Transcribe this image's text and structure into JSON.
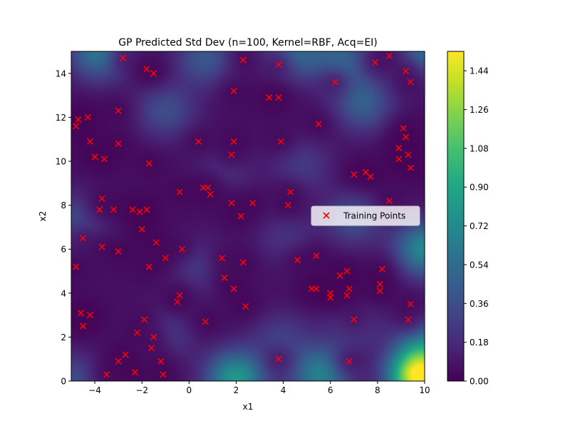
{
  "chart_data": {
    "type": "heatmap",
    "title": "GP Predicted Std Dev (n=100, Kernel=RBF, Acq=EI)",
    "xlabel": "x1",
    "ylabel": "x2",
    "xlim": [
      -5,
      10
    ],
    "ylim": [
      0,
      15
    ],
    "xticks": [
      -4,
      -2,
      0,
      2,
      4,
      6,
      8,
      10
    ],
    "yticks": [
      0,
      2,
      4,
      6,
      8,
      10,
      12,
      14
    ],
    "colormap": "viridis",
    "colorbar": {
      "range": [
        0.0,
        1.53
      ],
      "ticks": [
        "0.00",
        "0.18",
        "0.36",
        "0.54",
        "0.72",
        "0.90",
        "1.08",
        "1.26",
        "1.44"
      ]
    },
    "surface_features": [
      {
        "x": -3.8,
        "y": 15,
        "level": 0.55
      },
      {
        "x": 0.7,
        "y": 14.7,
        "level": 0.35
      },
      {
        "x": 4.5,
        "y": 15,
        "level": 0.45
      },
      {
        "x": 6.6,
        "y": 14.6,
        "level": 0.4
      },
      {
        "x": 10,
        "y": 15,
        "level": 0.5
      },
      {
        "x": -1,
        "y": 12.3,
        "level": 0.3
      },
      {
        "x": 7.4,
        "y": 12.6,
        "level": 0.38
      },
      {
        "x": -4.6,
        "y": 7.3,
        "level": 0.3
      },
      {
        "x": 1.5,
        "y": 9.5,
        "level": 0.15
      },
      {
        "x": 4.8,
        "y": 9.8,
        "level": 0.2
      },
      {
        "x": 7,
        "y": 7.4,
        "level": 0.3
      },
      {
        "x": 10,
        "y": 6,
        "level": 0.65
      },
      {
        "x": 10,
        "y": 1.8,
        "level": 0.4
      },
      {
        "x": 0.4,
        "y": 5.2,
        "level": 0.2
      },
      {
        "x": 4.1,
        "y": 6.5,
        "level": 0.16
      },
      {
        "x": -1,
        "y": 2.1,
        "level": 0.2
      },
      {
        "x": 2,
        "y": 0.1,
        "level": 0.75
      },
      {
        "x": 5.6,
        "y": 0.3,
        "level": 0.6
      },
      {
        "x": 9.8,
        "y": 0.2,
        "level": 1.5
      },
      {
        "x": 3.9,
        "y": 1.9,
        "level": 0.22
      },
      {
        "x": 7,
        "y": 2.5,
        "level": 0.18
      },
      {
        "x": -5,
        "y": 0,
        "level": 0.3
      }
    ],
    "series": [
      {
        "name": "Training Points",
        "marker": "x",
        "color": "#ff0000",
        "points": [
          [
            -2.8,
            14.7
          ],
          [
            -1.8,
            14.2
          ],
          [
            -1.5,
            14.0
          ],
          [
            2.3,
            14.6
          ],
          [
            3.8,
            14.4
          ],
          [
            8.5,
            14.8
          ],
          [
            7.9,
            14.5
          ],
          [
            9.2,
            14.1
          ],
          [
            9.4,
            13.6
          ],
          [
            1.9,
            13.2
          ],
          [
            3.4,
            12.9
          ],
          [
            3.8,
            12.9
          ],
          [
            6.2,
            13.6
          ],
          [
            -4.7,
            11.9
          ],
          [
            -4.3,
            12.0
          ],
          [
            -4.8,
            11.6
          ],
          [
            -3.0,
            12.3
          ],
          [
            5.5,
            11.7
          ],
          [
            9.1,
            11.5
          ],
          [
            9.2,
            11.1
          ],
          [
            -4.2,
            10.9
          ],
          [
            -3.0,
            10.8
          ],
          [
            0.4,
            10.9
          ],
          [
            1.9,
            10.9
          ],
          [
            3.9,
            10.9
          ],
          [
            -4.0,
            10.2
          ],
          [
            -3.6,
            10.1
          ],
          [
            -1.7,
            9.9
          ],
          [
            1.8,
            10.3
          ],
          [
            8.9,
            10.6
          ],
          [
            8.9,
            10.1
          ],
          [
            9.3,
            10.3
          ],
          [
            9.4,
            9.7
          ],
          [
            7.0,
            9.4
          ],
          [
            7.5,
            9.5
          ],
          [
            7.7,
            9.3
          ],
          [
            -0.4,
            8.6
          ],
          [
            0.6,
            8.8
          ],
          [
            0.8,
            8.8
          ],
          [
            0.9,
            8.5
          ],
          [
            4.3,
            8.6
          ],
          [
            -3.7,
            8.3
          ],
          [
            1.8,
            8.1
          ],
          [
            2.7,
            8.1
          ],
          [
            4.2,
            8.0
          ],
          [
            8.5,
            8.2
          ],
          [
            -3.8,
            7.8
          ],
          [
            -3.2,
            7.8
          ],
          [
            -2.4,
            7.8
          ],
          [
            -2.1,
            7.7
          ],
          [
            -1.8,
            7.8
          ],
          [
            2.2,
            7.5
          ],
          [
            -2.0,
            6.9
          ],
          [
            -4.5,
            6.5
          ],
          [
            -1.4,
            6.3
          ],
          [
            -3.7,
            6.1
          ],
          [
            -3.0,
            5.9
          ],
          [
            -0.3,
            6.0
          ],
          [
            -1.0,
            5.6
          ],
          [
            1.4,
            5.6
          ],
          [
            5.4,
            5.7
          ],
          [
            -4.8,
            5.2
          ],
          [
            -1.7,
            5.2
          ],
          [
            2.3,
            5.4
          ],
          [
            4.6,
            5.5
          ],
          [
            8.2,
            5.1
          ],
          [
            1.5,
            4.7
          ],
          [
            1.9,
            4.2
          ],
          [
            5.2,
            4.2
          ],
          [
            5.4,
            4.2
          ],
          [
            6.0,
            4.0
          ],
          [
            6.0,
            3.8
          ],
          [
            6.4,
            4.8
          ],
          [
            6.7,
            5.0
          ],
          [
            6.8,
            4.2
          ],
          [
            6.7,
            3.9
          ],
          [
            8.1,
            4.1
          ],
          [
            8.1,
            4.4
          ],
          [
            -0.4,
            3.9
          ],
          [
            -0.5,
            3.6
          ],
          [
            -4.6,
            3.1
          ],
          [
            -4.2,
            3.0
          ],
          [
            -4.5,
            2.5
          ],
          [
            -1.9,
            2.8
          ],
          [
            0.7,
            2.7
          ],
          [
            2.4,
            3.4
          ],
          [
            7.0,
            2.8
          ],
          [
            9.3,
            2.8
          ],
          [
            9.4,
            3.5
          ],
          [
            -2.2,
            2.2
          ],
          [
            -1.5,
            2.0
          ],
          [
            -1.6,
            1.5
          ],
          [
            -2.7,
            1.2
          ],
          [
            -1.2,
            0.9
          ],
          [
            -3.0,
            0.9
          ],
          [
            -3.5,
            0.3
          ],
          [
            -2.3,
            0.4
          ],
          [
            -1.1,
            0.3
          ],
          [
            3.8,
            1.0
          ],
          [
            6.8,
            0.9
          ]
        ]
      }
    ],
    "legend": {
      "placement": "right",
      "entries": [
        "Training Points"
      ]
    }
  }
}
